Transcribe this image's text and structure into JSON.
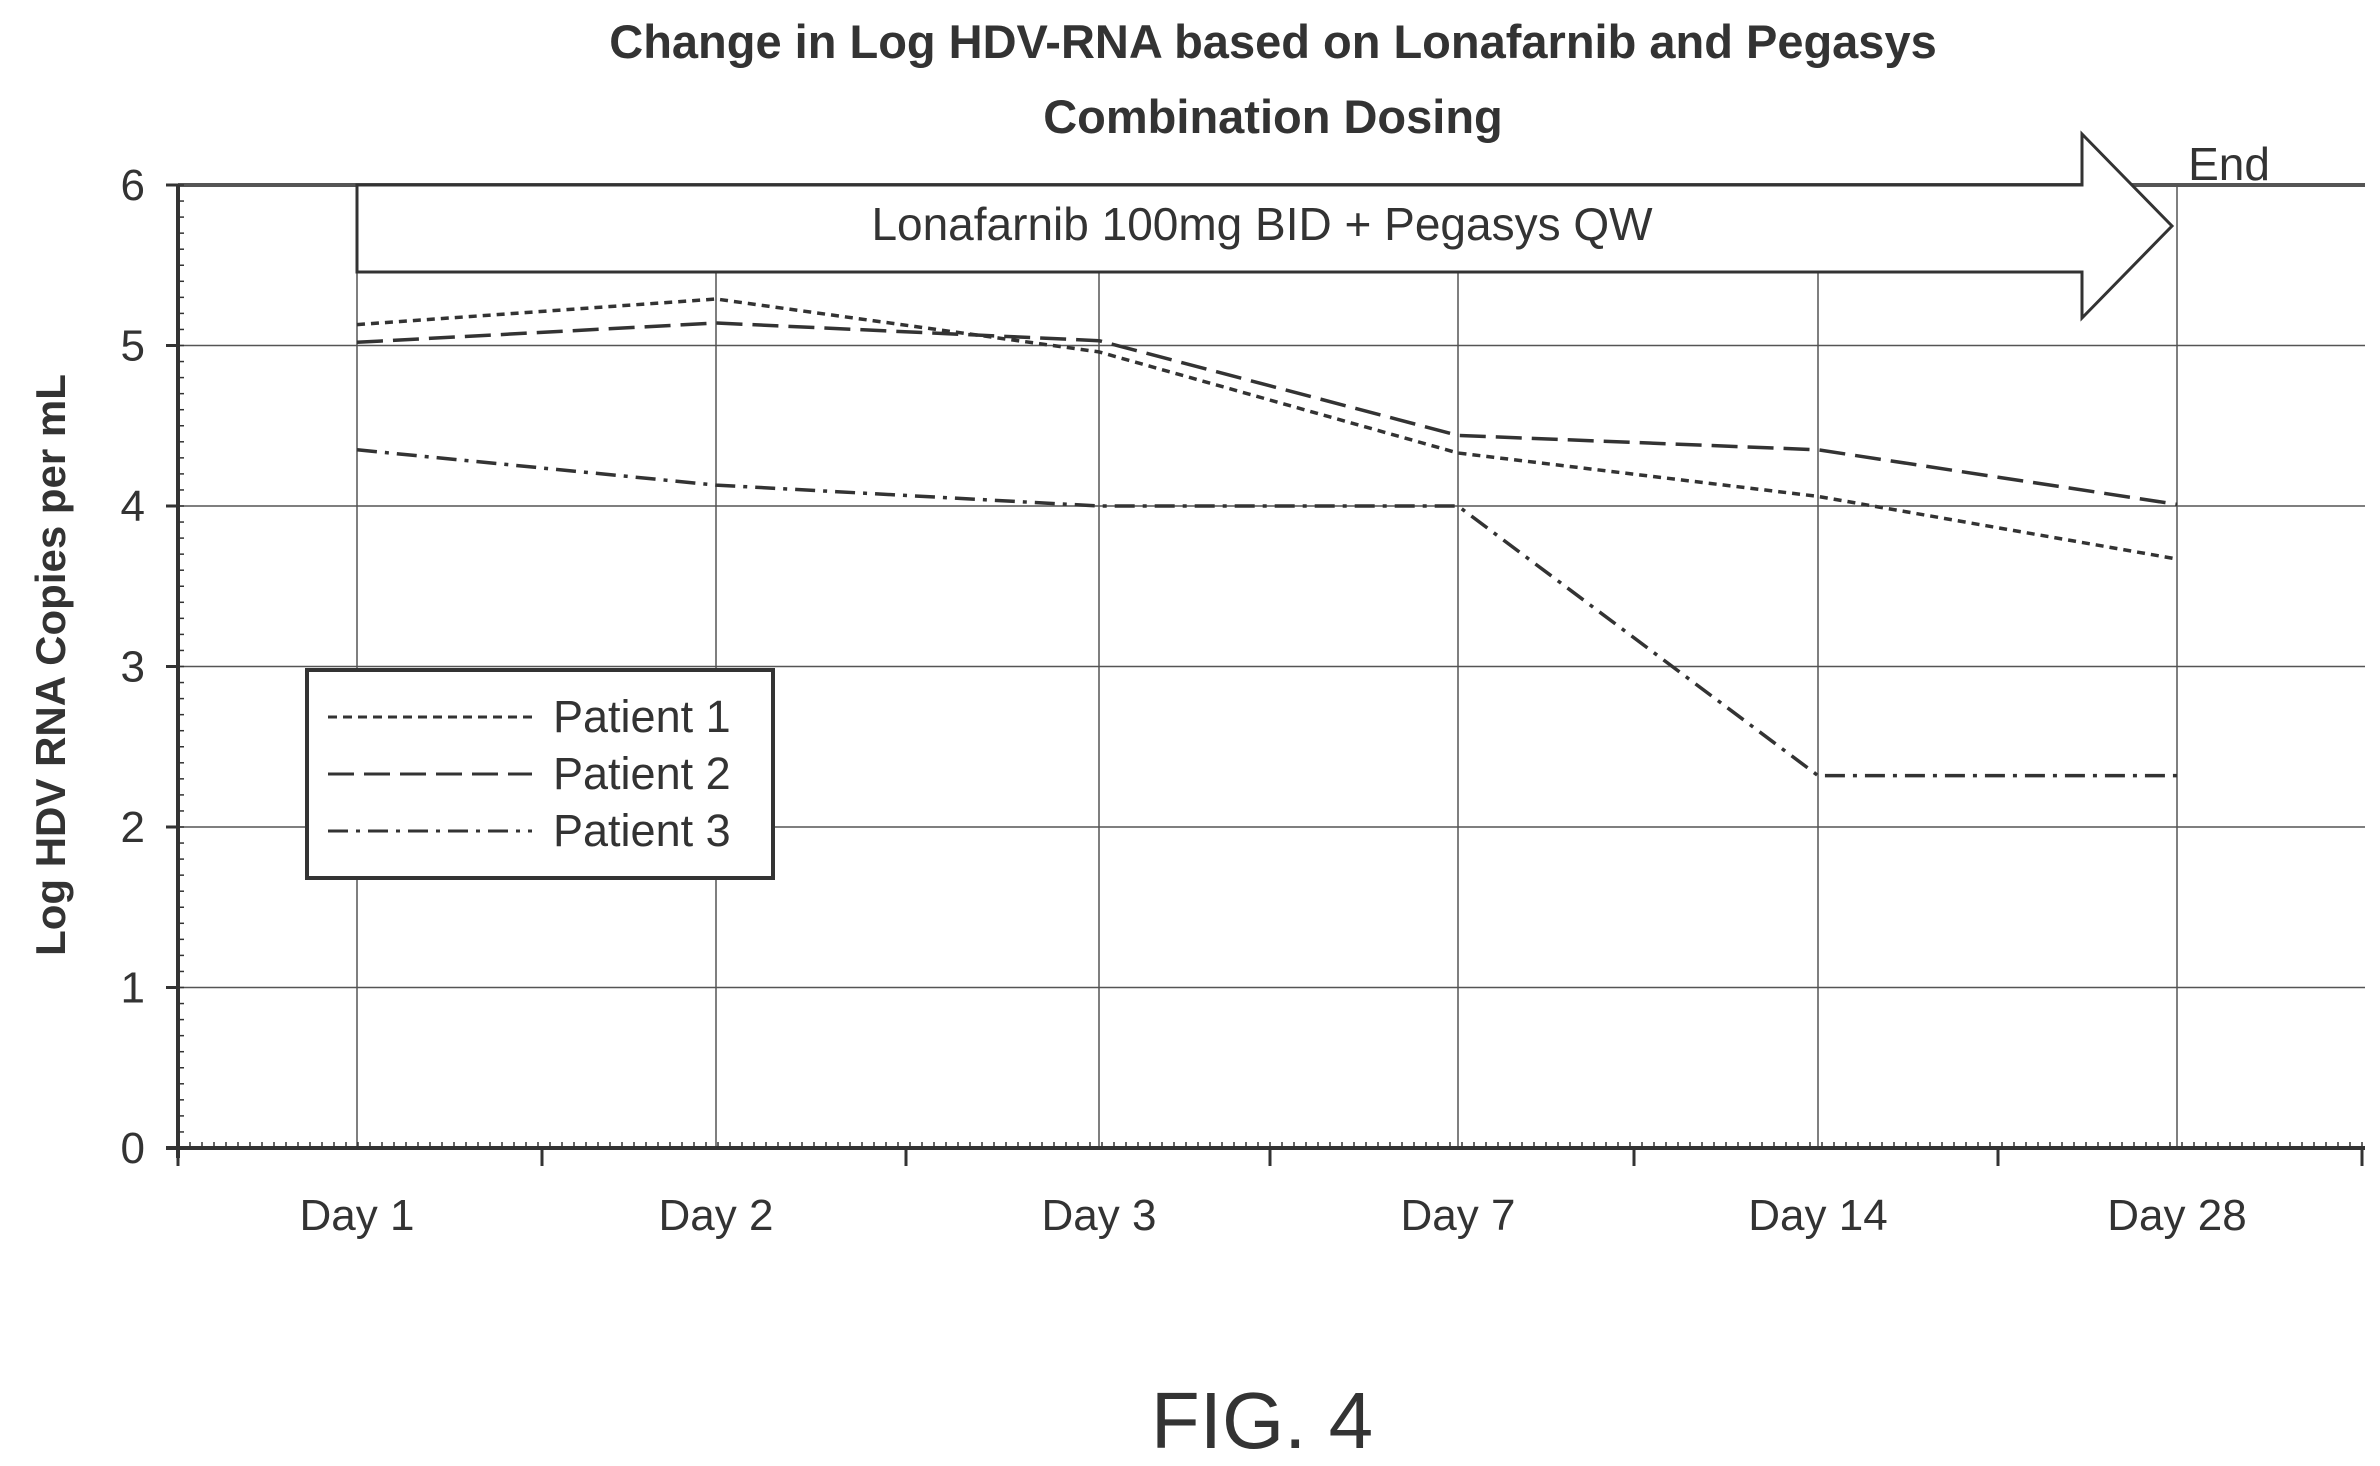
{
  "figure_label": "FIG. 4",
  "chart_data": {
    "type": "line",
    "title": "Change in Log HDV-RNA based on Lonafarnib and Pegasys Combination Dosing",
    "title_lines": [
      "Change in Log HDV-RNA based on Lonafarnib and Pegasys",
      "Combination Dosing"
    ],
    "ylabel": "Log HDV RNA Copies per mL",
    "xlabel": "",
    "categories": [
      "Day 1",
      "Day 2",
      "Day 3",
      "Day 7",
      "Day 14",
      "Day 28"
    ],
    "ylim": [
      0,
      6
    ],
    "yticks": [
      "0",
      "1",
      "2",
      "3",
      "4",
      "5",
      "6"
    ],
    "grid": true,
    "legend_position": "middle-left",
    "series": [
      {
        "name": "Patient 1",
        "style": "dotted",
        "values": [
          5.13,
          5.29,
          4.96,
          4.33,
          4.06,
          3.67
        ]
      },
      {
        "name": "Patient 2",
        "style": "dashed",
        "values": [
          5.02,
          5.14,
          5.03,
          4.44,
          4.35,
          4.01
        ]
      },
      {
        "name": "Patient 3",
        "style": "dash-dot",
        "values": [
          4.35,
          4.13,
          4.0,
          4.0,
          2.32,
          2.32
        ]
      }
    ],
    "annotations": {
      "dosing_arrow": "Lonafarnib 100mg BID + Pegasys QW",
      "end_label": "End"
    }
  }
}
